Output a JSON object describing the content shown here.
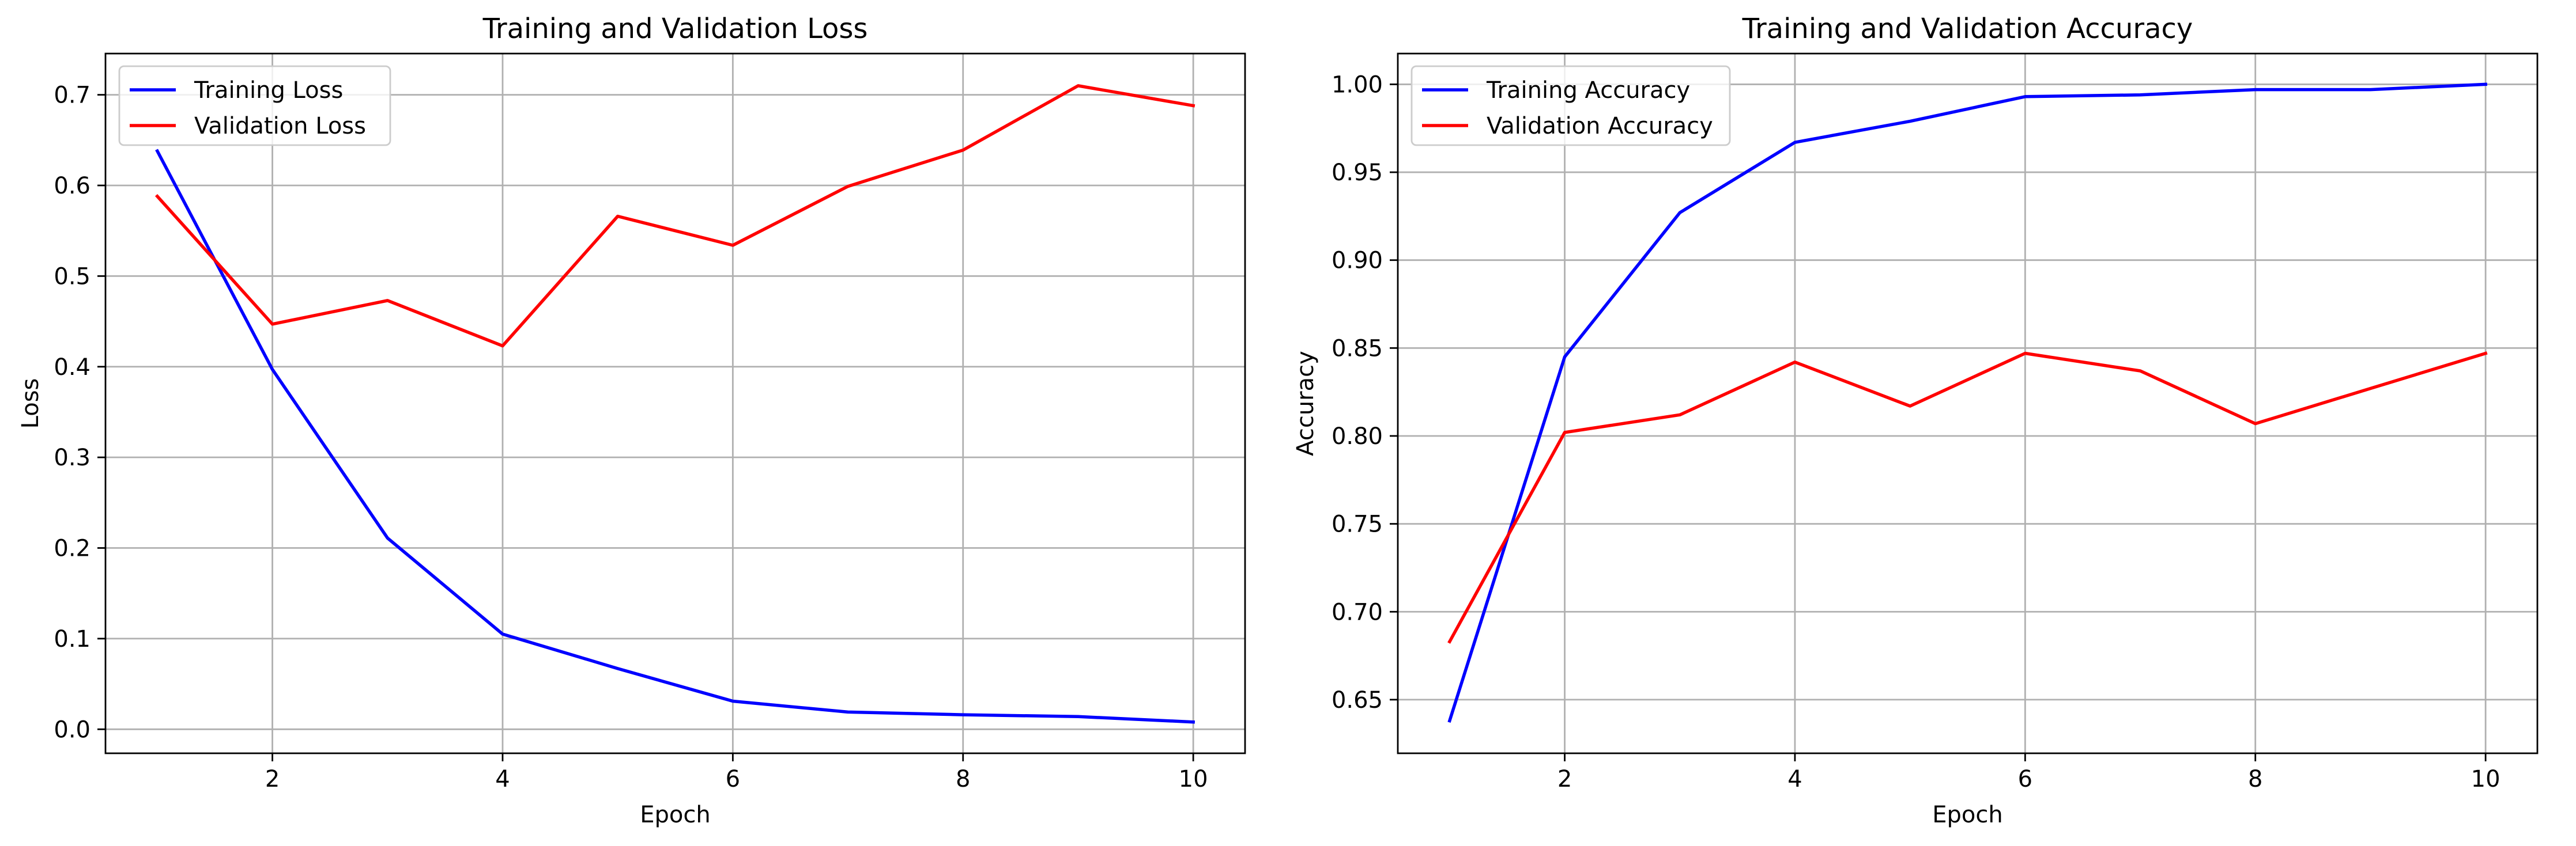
{
  "chart_data": [
    {
      "type": "line",
      "title": "Training and Validation Loss",
      "xlabel": "Epoch",
      "ylabel": "Loss",
      "x": [
        1,
        2,
        3,
        4,
        5,
        6,
        7,
        8,
        9,
        10
      ],
      "xlim": [
        0.55,
        10.45
      ],
      "ylim": [
        -0.0265,
        0.7455
      ],
      "xticks": [
        2,
        4,
        6,
        8,
        10
      ],
      "yticks": [
        0.0,
        0.1,
        0.2,
        0.3,
        0.4,
        0.5,
        0.6,
        0.7
      ],
      "ytick_decimals": 1,
      "grid": true,
      "legend_position": "upper-left",
      "series": [
        {
          "name": "Training Loss",
          "color": "#0000ff",
          "values": [
            0.638,
            0.397,
            0.211,
            0.105,
            0.067,
            0.031,
            0.019,
            0.016,
            0.014,
            0.008
          ]
        },
        {
          "name": "Validation Loss",
          "color": "#ff0000",
          "values": [
            0.588,
            0.447,
            0.473,
            0.423,
            0.566,
            0.534,
            0.599,
            0.639,
            0.71,
            0.688
          ]
        }
      ]
    },
    {
      "type": "line",
      "title": "Training and Validation Accuracy",
      "xlabel": "Epoch",
      "ylabel": "Accuracy",
      "x": [
        1,
        2,
        3,
        4,
        5,
        6,
        7,
        8,
        9,
        10
      ],
      "xlim": [
        0.55,
        10.45
      ],
      "ylim": [
        0.6195,
        1.0175
      ],
      "xticks": [
        2,
        4,
        6,
        8,
        10
      ],
      "yticks": [
        0.65,
        0.7,
        0.75,
        0.8,
        0.85,
        0.9,
        0.95,
        1.0
      ],
      "ytick_decimals": 2,
      "grid": true,
      "legend_position": "upper-left",
      "series": [
        {
          "name": "Training Accuracy",
          "color": "#0000ff",
          "values": [
            0.638,
            0.845,
            0.927,
            0.967,
            0.979,
            0.993,
            0.994,
            0.997,
            0.997,
            1.0
          ]
        },
        {
          "name": "Validation Accuracy",
          "color": "#ff0000",
          "values": [
            0.683,
            0.802,
            0.812,
            0.842,
            0.817,
            0.847,
            0.837,
            0.807,
            0.827,
            0.847
          ]
        }
      ]
    }
  ]
}
